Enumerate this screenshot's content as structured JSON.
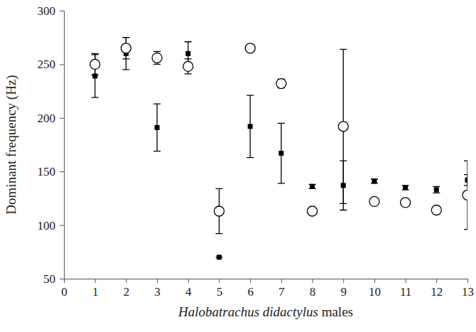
{
  "chart_data": {
    "type": "scatter",
    "x_label": "Halobatrachus didactylus males",
    "y_label": "Dominant frequency (Hz)",
    "xlim": [
      0,
      13
    ],
    "xticks": [
      0,
      1,
      2,
      3,
      4,
      5,
      6,
      7,
      8,
      9,
      10,
      11,
      12,
      13
    ],
    "ylim": [
      50,
      300
    ],
    "yticks": [
      50,
      100,
      150,
      200,
      250,
      300
    ],
    "grid": false,
    "series": [
      {
        "marker": "open_circle",
        "color": "#000000",
        "x": [
          1,
          2,
          3,
          4,
          5,
          6,
          7,
          8,
          9,
          10,
          11,
          12,
          13
        ],
        "values": [
          250,
          265,
          256,
          248,
          113,
          265,
          232,
          113,
          192,
          122,
          121,
          114,
          128
        ],
        "errors": [
          10,
          10,
          6,
          7,
          21,
          3,
          4,
          2,
          72,
          2,
          2,
          3,
          32
        ]
      },
      {
        "marker": "square",
        "color": "#000000",
        "x": [
          1,
          2,
          3,
          4,
          5,
          6,
          7,
          8,
          9,
          10,
          11,
          12,
          13
        ],
        "values": [
          239,
          260,
          191,
          260,
          70,
          192,
          167,
          136,
          137,
          141,
          135,
          133,
          142
        ],
        "errors": [
          20,
          15,
          22,
          11,
          0,
          29,
          28,
          2,
          23,
          2,
          2,
          3,
          5
        ]
      }
    ]
  }
}
